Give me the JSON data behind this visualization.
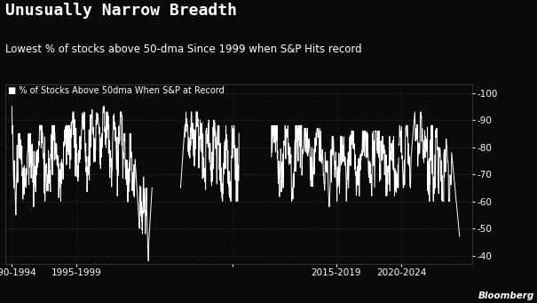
{
  "title": "Unusually Narrow Breadth",
  "subtitle": "Lowest % of stocks above 50-dma Since 1999 when S&P Hits record",
  "legend_label": "% of Stocks Above 50dma When S&P at Record",
  "bg_color": "#0a0a0a",
  "line_color": "#ffffff",
  "text_color": "#ffffff",
  "grid_color": "#2a2a2a",
  "ylim": [
    37,
    103
  ],
  "yticks": [
    40,
    50,
    60,
    70,
    80,
    90,
    100
  ],
  "bloomberg_text": "Bloomberg",
  "title_fontsize": 13,
  "subtitle_fontsize": 8.5,
  "legend_fontsize": 7,
  "tick_fontsize": 7.5
}
